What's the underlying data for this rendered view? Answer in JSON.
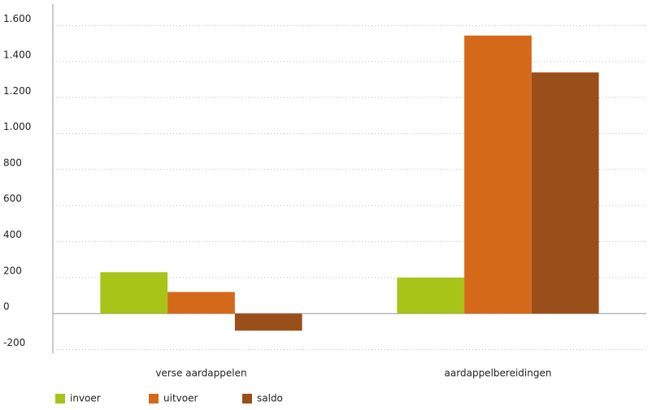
{
  "chart_data": {
    "type": "bar",
    "categories": [
      "verse aardappelen",
      "aardappelbereidingen"
    ],
    "series": [
      {
        "name": "invoer",
        "color": "#a8c418",
        "values": [
          230,
          200
        ]
      },
      {
        "name": "uitvoer",
        "color": "#d4691a",
        "values": [
          120,
          1545
        ]
      },
      {
        "name": "saldo",
        "color": "#9a4e1a",
        "values": [
          -95,
          1340
        ]
      }
    ],
    "ylim": [
      -220,
      1720
    ],
    "yticks": [
      -200,
      0,
      200,
      400,
      600,
      800,
      {
        "value": 1000,
        "label": "1.000"
      },
      {
        "value": 1200,
        "label": "1.200"
      },
      {
        "value": 1400,
        "label": "1.400"
      },
      {
        "value": 1600,
        "label": "1.600"
      }
    ],
    "grid": true
  }
}
